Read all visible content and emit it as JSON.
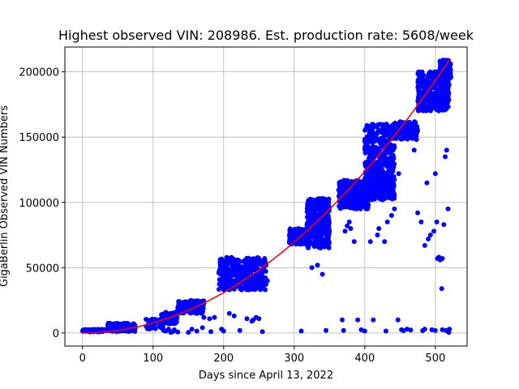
{
  "chart_data": {
    "type": "scatter",
    "title": "Highest observed VIN: 208986. Est. production rate: 5608/week",
    "xlabel": "Days since April 13, 2022",
    "ylabel": "GigaBerlin Observed VIN Numbers",
    "xlim": [
      -25,
      545
    ],
    "ylim": [
      -10000,
      219000
    ],
    "xticks": [
      0,
      100,
      200,
      300,
      400,
      500
    ],
    "yticks": [
      0,
      50000,
      100000,
      150000,
      200000
    ],
    "grid": true,
    "colors": {
      "points": "#0000ff",
      "fit": "#ff0000",
      "grid": "#b0b0b0"
    },
    "clusters": [
      {
        "x": [
          0,
          35
        ],
        "y": [
          800,
          2800
        ],
        "n": 70
      },
      {
        "x": [
          35,
          75
        ],
        "y": [
          1000,
          7500
        ],
        "n": 120
      },
      {
        "x": [
          90,
          115
        ],
        "y": [
          3000,
          11000
        ],
        "n": 40
      },
      {
        "x": [
          110,
          135
        ],
        "y": [
          7000,
          16000
        ],
        "n": 60
      },
      {
        "x": [
          135,
          172
        ],
        "y": [
          15000,
          25000
        ],
        "n": 160
      },
      {
        "x": [
          193,
          260
        ],
        "y": [
          33000,
          58000
        ],
        "n": 360
      },
      {
        "x": [
          293,
          322
        ],
        "y": [
          68000,
          80000
        ],
        "n": 180
      },
      {
        "x": [
          318,
          350
        ],
        "y": [
          65000,
          103000
        ],
        "n": 330
      },
      {
        "x": [
          363,
          405
        ],
        "y": [
          95000,
          117000
        ],
        "n": 300
      },
      {
        "x": [
          398,
          442
        ],
        "y": [
          102000,
          121000
        ],
        "n": 300
      },
      {
        "x": [
          400,
          442
        ],
        "y": [
          122000,
          160000
        ],
        "n": 280
      },
      {
        "x": [
          442,
          475
        ],
        "y": [
          148000,
          162000
        ],
        "n": 120
      },
      {
        "x": [
          475,
          520
        ],
        "y": [
          170000,
          200000
        ],
        "n": 330
      },
      {
        "x": [
          505,
          522
        ],
        "y": [
          195000,
          209000
        ],
        "n": 80
      }
    ],
    "outliers": [
      [
        90,
        10500
      ],
      [
        100,
        10000
      ],
      [
        105,
        9500
      ],
      [
        110,
        6000
      ],
      [
        115,
        2000
      ],
      [
        118,
        1500
      ],
      [
        122,
        3000
      ],
      [
        125,
        500
      ],
      [
        128,
        1000
      ],
      [
        130,
        2500
      ],
      [
        135,
        800
      ],
      [
        150,
        500
      ],
      [
        155,
        3000
      ],
      [
        162,
        1500
      ],
      [
        170,
        4000
      ],
      [
        172,
        12000
      ],
      [
        180,
        11000
      ],
      [
        182,
        1000
      ],
      [
        187,
        12000
      ],
      [
        197,
        3000
      ],
      [
        200,
        1500
      ],
      [
        208,
        15000
      ],
      [
        215,
        13000
      ],
      [
        223,
        2000
      ],
      [
        233,
        11000
      ],
      [
        240,
        9000
      ],
      [
        242,
        10000
      ],
      [
        246,
        12000
      ],
      [
        250,
        11000
      ],
      [
        255,
        1000
      ],
      [
        262,
        40000
      ],
      [
        260,
        52000
      ],
      [
        310,
        1500
      ],
      [
        325,
        50000
      ],
      [
        333,
        52000
      ],
      [
        340,
        45000
      ],
      [
        345,
        2000
      ],
      [
        368,
        10000
      ],
      [
        370,
        2000
      ],
      [
        372,
        78000
      ],
      [
        375,
        82000
      ],
      [
        378,
        85000
      ],
      [
        380,
        80000
      ],
      [
        385,
        70000
      ],
      [
        390,
        10000
      ],
      [
        395,
        2500
      ],
      [
        400,
        1500
      ],
      [
        408,
        70000
      ],
      [
        412,
        10000
      ],
      [
        418,
        75000
      ],
      [
        420,
        80000
      ],
      [
        428,
        70000
      ],
      [
        430,
        1500
      ],
      [
        432,
        85000
      ],
      [
        438,
        90000
      ],
      [
        442,
        95000
      ],
      [
        447,
        10000
      ],
      [
        448,
        122000
      ],
      [
        452,
        2500
      ],
      [
        455,
        1800
      ],
      [
        460,
        3000
      ],
      [
        465,
        2200
      ],
      [
        470,
        140000
      ],
      [
        475,
        92000
      ],
      [
        480,
        85000
      ],
      [
        482,
        1800
      ],
      [
        485,
        67000
      ],
      [
        488,
        115000
      ],
      [
        490,
        72000
      ],
      [
        493,
        75000
      ],
      [
        495,
        2500
      ],
      [
        498,
        78000
      ],
      [
        500,
        122000
      ],
      [
        502,
        85000
      ],
      [
        503,
        57000
      ],
      [
        505,
        58000
      ],
      [
        507,
        56000
      ],
      [
        509,
        34000
      ],
      [
        510,
        57000
      ],
      [
        512,
        83000
      ],
      [
        514,
        135000
      ],
      [
        516,
        140000
      ],
      [
        518,
        95000
      ],
      [
        519,
        2500
      ],
      [
        520,
        3000
      ],
      [
        485,
        3000
      ],
      [
        500,
        2000
      ],
      [
        510,
        2500
      ],
      [
        515,
        2000
      ],
      [
        519,
        500
      ]
    ],
    "fit": {
      "x": [
        0,
        520
      ],
      "y": [
        0,
        208986
      ],
      "form": "quadratic"
    }
  }
}
